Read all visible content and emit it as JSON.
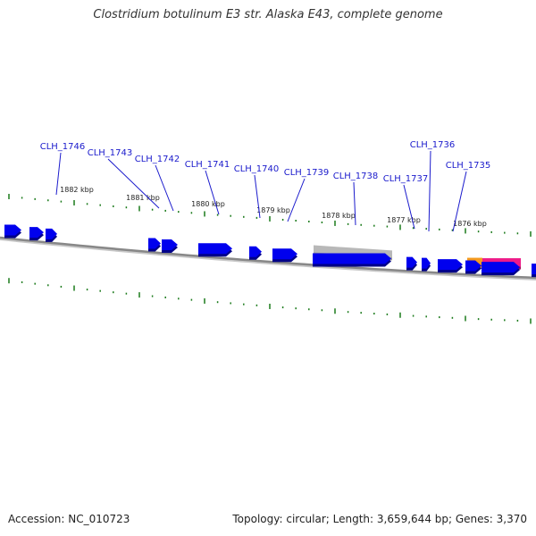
{
  "title": "Clostridium botulinum E3 str. Alaska E43, complete genome",
  "footer": {
    "accession": "Accession: NC_010723",
    "summary": "Topology: circular; Length: 3,659,644 bp; Genes: 3,370"
  },
  "colors": {
    "gene_fill": "#0000ee",
    "gene_shadow": "#000088",
    "backbone": "#888888",
    "tick_green": "#1a7a1a",
    "label_blue": "#1a1acc",
    "pseudo_gray": "#b8b8b8",
    "feature_orange": "#f59a1e",
    "feature_pink": "#ee1a88"
  },
  "kbp_labels": [
    "1882 kbp",
    "1881 kbp",
    "1880 kbp",
    "1879 kbp",
    "1878 kbp",
    "1877 kbp",
    "1876 kbp"
  ],
  "gene_labels": [
    "CLH_1746",
    "CLH_1743",
    "CLH_1742",
    "CLH_1741",
    "CLH_1740",
    "CLH_1739",
    "CLH_1738",
    "CLH_1737",
    "CLH_1736",
    "CLH_1735"
  ]
}
